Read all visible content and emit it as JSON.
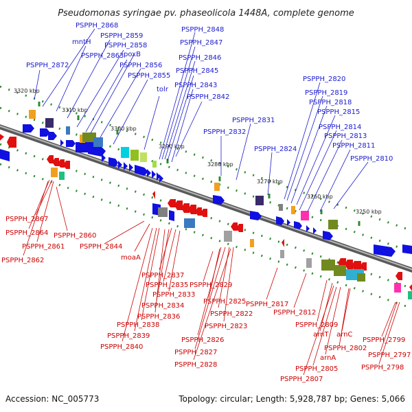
{
  "title": "Pseudomonas syringae pv. phaseolicola 1448A, complete genome",
  "footer": {
    "accession": "Accession: NC_005773",
    "topology": "Topology: circular; Length: 5,928,787 bp; Genes: 5,066"
  },
  "ticks": [
    "3320 kbp",
    "3310 kbp",
    "3300 kbp",
    "3290 kbp",
    "3280 kbp",
    "3270 kbp",
    "3260 kbp",
    "3250 kbp"
  ],
  "top_labels": [
    "PSPPH_2868",
    "mntH",
    "PSPPH_2859",
    "PSPPH_2858",
    "PSPPH_2863",
    "poxB",
    "PSPPH_2872",
    "PSPPH_2856",
    "PSPPH_2855",
    "tolr",
    "PSPPH_2848",
    "PSPPH_2847",
    "PSPPH_2846",
    "PSPPH_2845",
    "PSPPH_2843",
    "PSPPH_2842",
    "PSPPH_2831",
    "PSPPH_2832",
    "PSPPH_2824",
    "PSPPH_2820",
    "PSPPH_2819",
    "PSPPH_2818",
    "PSPPH_2815",
    "PSPPH_2814",
    "PSPPH_2813",
    "PSPPH_2811",
    "PSPPH_2810"
  ],
  "bottom_labels": [
    "PSPPH_2867",
    "PSPPH_2864",
    "PSPPH_2860",
    "PSPPH_2861",
    "PSPPH_2862",
    "PSPPH_2844",
    "moaA",
    "PSPPH_2837",
    "PSPPH_2835",
    "PSPPH_2833",
    "PSPPH_2834",
    "PSPPH_2836",
    "PSPPH_2838",
    "PSPPH_2839",
    "PSPPH_2840",
    "PSPPH_2829",
    "PSPPH_2825",
    "PSPPH_2822",
    "PSPPH_2823",
    "PSPPH_2826",
    "PSPPH_2827",
    "PSPPH_2828",
    "PSPPH_2817",
    "PSPPH_2812",
    "PSPPH_2809",
    "arnT",
    "arnC",
    "PSPPH_2802",
    "arnA",
    "PSPPH_2805",
    "PSPPH_2807",
    "PSPPH_2799",
    "PSPPH_2797",
    "PSPPH_2798"
  ],
  "colors": {
    "forward": "#1010e0",
    "reverse": "#e01010",
    "backbone": "#8a8a8a",
    "tick_marks": "#2e8b2e"
  }
}
